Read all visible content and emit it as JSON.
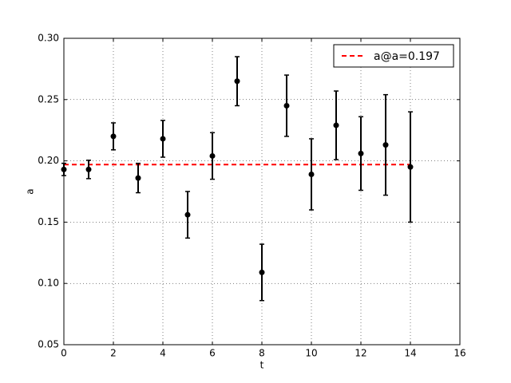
{
  "chart_data": {
    "type": "errorbar",
    "x_label": "t",
    "y_label": "a",
    "x": [
      0,
      1,
      2,
      3,
      4,
      5,
      6,
      7,
      8,
      9,
      10,
      11,
      12,
      13,
      14
    ],
    "values": [
      0.193,
      0.193,
      0.22,
      0.186,
      0.218,
      0.156,
      0.204,
      0.265,
      0.109,
      0.245,
      0.189,
      0.229,
      0.206,
      0.213,
      0.195
    ],
    "errors": [
      0.005,
      0.0075,
      0.011,
      0.012,
      0.015,
      0.019,
      0.019,
      0.02,
      0.023,
      0.025,
      0.029,
      0.028,
      0.03,
      0.041,
      0.045
    ],
    "color": "#000000",
    "reference_line": {
      "name": "a@a=0.197",
      "value": 0.197,
      "color": "#ff0000"
    },
    "legend": "upper right",
    "grid": true,
    "xlim": [
      0,
      16
    ],
    "xticks": [
      0,
      2,
      4,
      6,
      8,
      10,
      12,
      14,
      16
    ],
    "ylim": [
      0.05,
      0.3
    ],
    "yticks": [
      0.05,
      {
        "value": 0.1,
        "label": "0.10"
      },
      0.15,
      {
        "value": 0.2,
        "label": "0.20"
      },
      0.25,
      {
        "value": 0.3,
        "label": "0.30"
      }
    ]
  }
}
